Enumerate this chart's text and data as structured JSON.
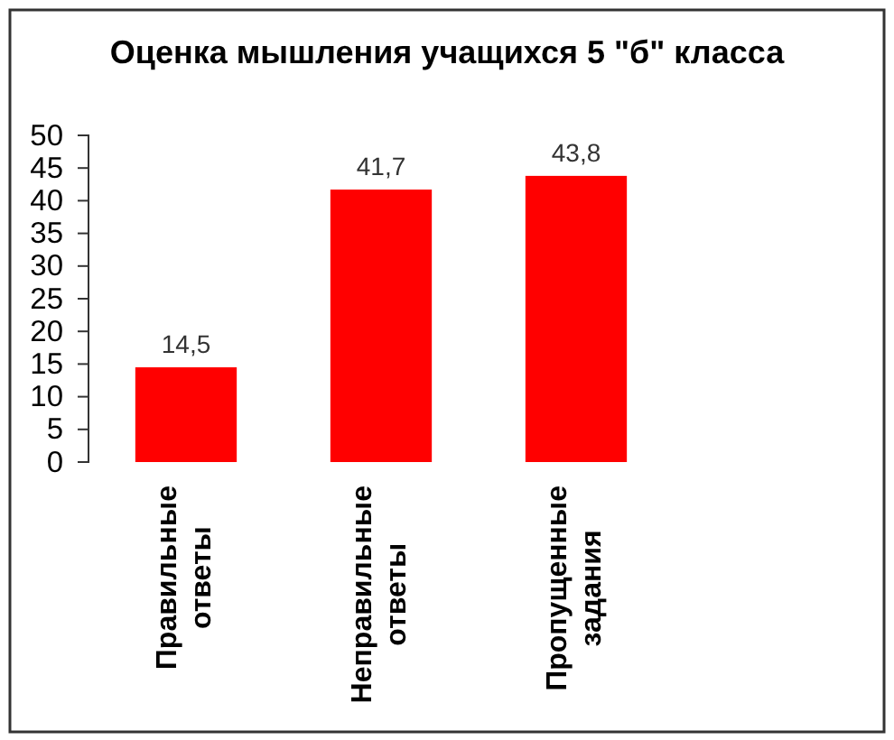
{
  "chart_data": {
    "type": "bar",
    "title": "Оценка мышления учащихся 5 \"б\" класса",
    "categories": [
      "Правильные ответы",
      "Неправильные ответы",
      "Пропущенные задания"
    ],
    "values": [
      14.5,
      41.7,
      43.8
    ],
    "color": "#ff0000",
    "value_labels": [
      "14,5",
      "41,7",
      "43,8"
    ],
    "ylim": [
      0,
      50
    ],
    "yticks": [
      0,
      5,
      10,
      15,
      20,
      25,
      30,
      35,
      40,
      45,
      50
    ],
    "grid": false
  }
}
